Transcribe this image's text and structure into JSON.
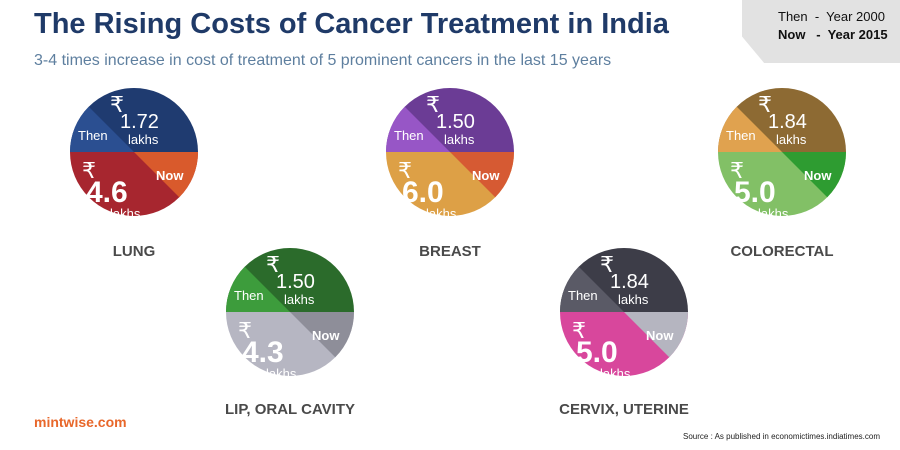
{
  "header": {
    "title": "The Rising Costs of Cancer Treatment in India",
    "subtitle": "3-4 times increase in cost of treatment of 5 prominent cancers in the last 15 years"
  },
  "legend": {
    "then": "Then  -  Year 2000",
    "now": "Now   -  Year 2015"
  },
  "footer": {
    "brand": "mintwise.com",
    "source": "Source : As published in economictimes.indiatimes.com"
  },
  "chart_data": {
    "type": "pie",
    "title": "The Rising Costs of Cancer Treatment in India",
    "unit": "lakhs",
    "currency_symbol": "₹",
    "then_label": "Then",
    "now_label": "Now",
    "categories": [
      "LUNG",
      "LIP, ORAL CAVITY",
      "BREAST",
      "CERVIX, UTERINE",
      "COLORECTAL"
    ],
    "series": [
      {
        "name": "Then",
        "values": [
          1.72,
          1.5,
          1.5,
          1.84,
          1.84
        ]
      },
      {
        "name": "Now",
        "values": [
          4.6,
          4.3,
          6.0,
          5.0,
          5.0
        ]
      }
    ],
    "value_labels": {
      "then": [
        "1.72",
        "1.50",
        "1.50",
        "1.84",
        "1.84"
      ],
      "now": [
        "4.6",
        "4.3",
        "6.0",
        "5.0",
        "5.0"
      ]
    },
    "colors": {
      "then_top": [
        "#1f3b70",
        "#2b6b2b",
        "#6b3c95",
        "#3d3d48",
        "#8d6a33"
      ],
      "then_left": [
        "#2b4f91",
        "#3d9c3c",
        "#9756c6",
        "#5a5a66",
        "#e0a24f"
      ],
      "now_bottom": [
        "#a7262f",
        "#b6b6c2",
        "#dda046",
        "#d8479c",
        "#82c066"
      ],
      "now_right": [
        "#d95a2c",
        "#8e8e99",
        "#d65a33",
        "#b5b5c0",
        "#2e9c31"
      ]
    }
  }
}
